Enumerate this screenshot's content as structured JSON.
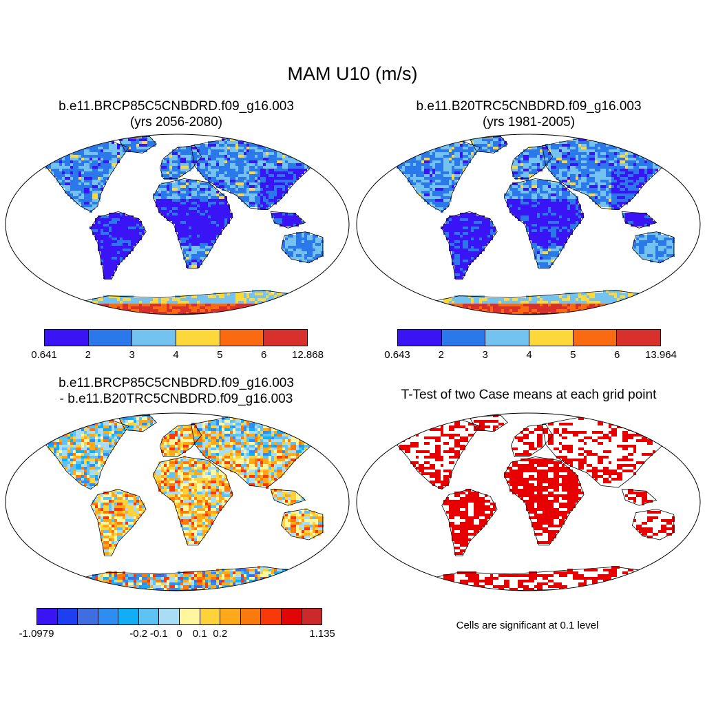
{
  "title": "MAM U10 (m/s)",
  "panels": [
    {
      "id": "p1",
      "title_line1": "b.e11.BRCP85C5CNBDRD.f09_g16.003",
      "title_line2": "(yrs 2056-2080)"
    },
    {
      "id": "p2",
      "title_line1": "b.e11.B20TRC5CNBDRD.f09_g16.003",
      "title_line2": "(yrs 1981-2005)"
    },
    {
      "id": "p3",
      "title_line1": "b.e11.BRCP85C5CNBDRD.f09_g16.003",
      "title_line2": "- b.e11.B20TRC5CNBDRD.f09_g16.003"
    },
    {
      "id": "p4",
      "title_line1": "T-Test of two Case means at each grid point",
      "title_line2": ""
    }
  ],
  "colorbars": {
    "cb1": {
      "colors": [
        "#3a14f5",
        "#2a78ea",
        "#74c2f0",
        "#fdd83a",
        "#fa6a10",
        "#d8302c"
      ],
      "labels": [
        "0.641",
        "2",
        "3",
        "4",
        "5",
        "6",
        "12.868"
      ]
    },
    "cb2": {
      "colors": [
        "#3a14f5",
        "#2a78ea",
        "#74c2f0",
        "#fdd83a",
        "#fa6a10",
        "#d8302c"
      ],
      "labels": [
        "0.643",
        "2",
        "3",
        "4",
        "5",
        "6",
        "13.964"
      ]
    },
    "cb3": {
      "colors": [
        "#3a14f5",
        "#1e3ff0",
        "#3e6ee0",
        "#2f8cf0",
        "#12aef5",
        "#5ec3f2",
        "#a9dcf5",
        "#fff7a0",
        "#fdd23a",
        "#fda91a",
        "#fb7a0e",
        "#f83a0a",
        "#e10606",
        "#cc2a2a"
      ],
      "labels": [
        "-1.0979",
        "-0.2",
        "-0.1",
        "0",
        "0.1",
        "0.2",
        "1.135"
      ]
    }
  },
  "significance_note": "Cells are significant at 0.1 level",
  "map_colors": {
    "ocean": "#ffffff",
    "significant": "#e60000",
    "coast": "#000000"
  }
}
